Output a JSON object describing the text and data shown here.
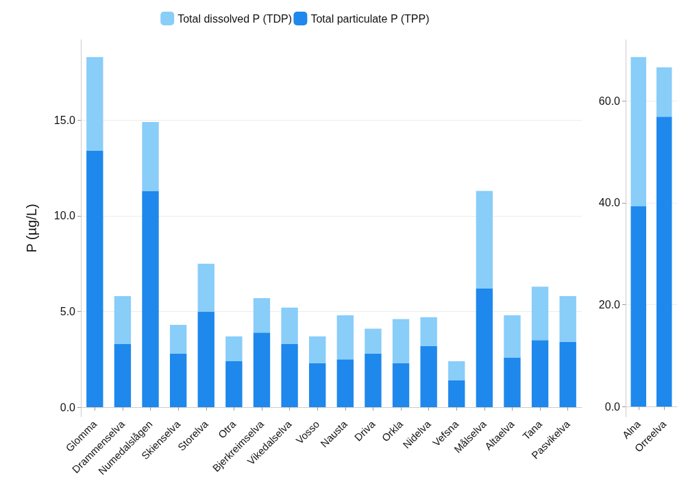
{
  "chart_data": [
    {
      "type": "bar",
      "stacked": true,
      "ylabel": "P (µg/L)",
      "legend": "top",
      "grid": "y",
      "categories": [
        "Glomma",
        "Drammenselva",
        "Numedalslågen",
        "Skienselva",
        "Storelva",
        "Otra",
        "Bjerkreimselva",
        "Vikedalselva",
        "Vosso",
        "Nausta",
        "Driva",
        "Orkla",
        "Nidelva",
        "Vefsna",
        "Målselva",
        "Altaelva",
        "Tana",
        "Pasvikelva"
      ],
      "series": [
        {
          "name": "Total particulate P (TPP)",
          "color": "#1e88ec",
          "values": [
            13.4,
            3.3,
            11.3,
            2.8,
            5.0,
            2.4,
            3.9,
            3.3,
            2.3,
            2.5,
            2.8,
            2.3,
            3.2,
            1.4,
            6.2,
            2.6,
            3.5,
            3.4
          ]
        },
        {
          "name": "Total dissolved P (TDP)",
          "color": "#89cdf9",
          "values": [
            4.9,
            2.5,
            3.6,
            1.5,
            2.5,
            1.3,
            1.8,
            1.9,
            1.4,
            2.3,
            1.3,
            2.3,
            1.5,
            1.0,
            5.1,
            2.2,
            2.8,
            2.4
          ]
        }
      ],
      "ylim": [
        -0.5,
        19.2
      ],
      "yticks": [
        {
          "value": 0,
          "label": "0.0"
        },
        {
          "value": 5,
          "label": "5.0"
        },
        {
          "value": 10,
          "label": "10.0"
        },
        {
          "value": 15,
          "label": "15.0"
        }
      ]
    },
    {
      "type": "bar",
      "stacked": true,
      "grid": "y",
      "categories": [
        "Alna",
        "Orreelva"
      ],
      "series": [
        {
          "color": "#1e88ec",
          "values": [
            39.3,
            56.9
          ]
        },
        {
          "color": "#89cdf9",
          "values": [
            29.3,
            9.7
          ]
        }
      ],
      "ylim": [
        -2,
        72
      ],
      "yticks": [
        {
          "value": 0,
          "label": "0.0"
        },
        {
          "value": 20,
          "label": "20.0"
        },
        {
          "value": 40,
          "label": "40.0"
        },
        {
          "value": 60,
          "label": "60.0"
        }
      ]
    }
  ]
}
